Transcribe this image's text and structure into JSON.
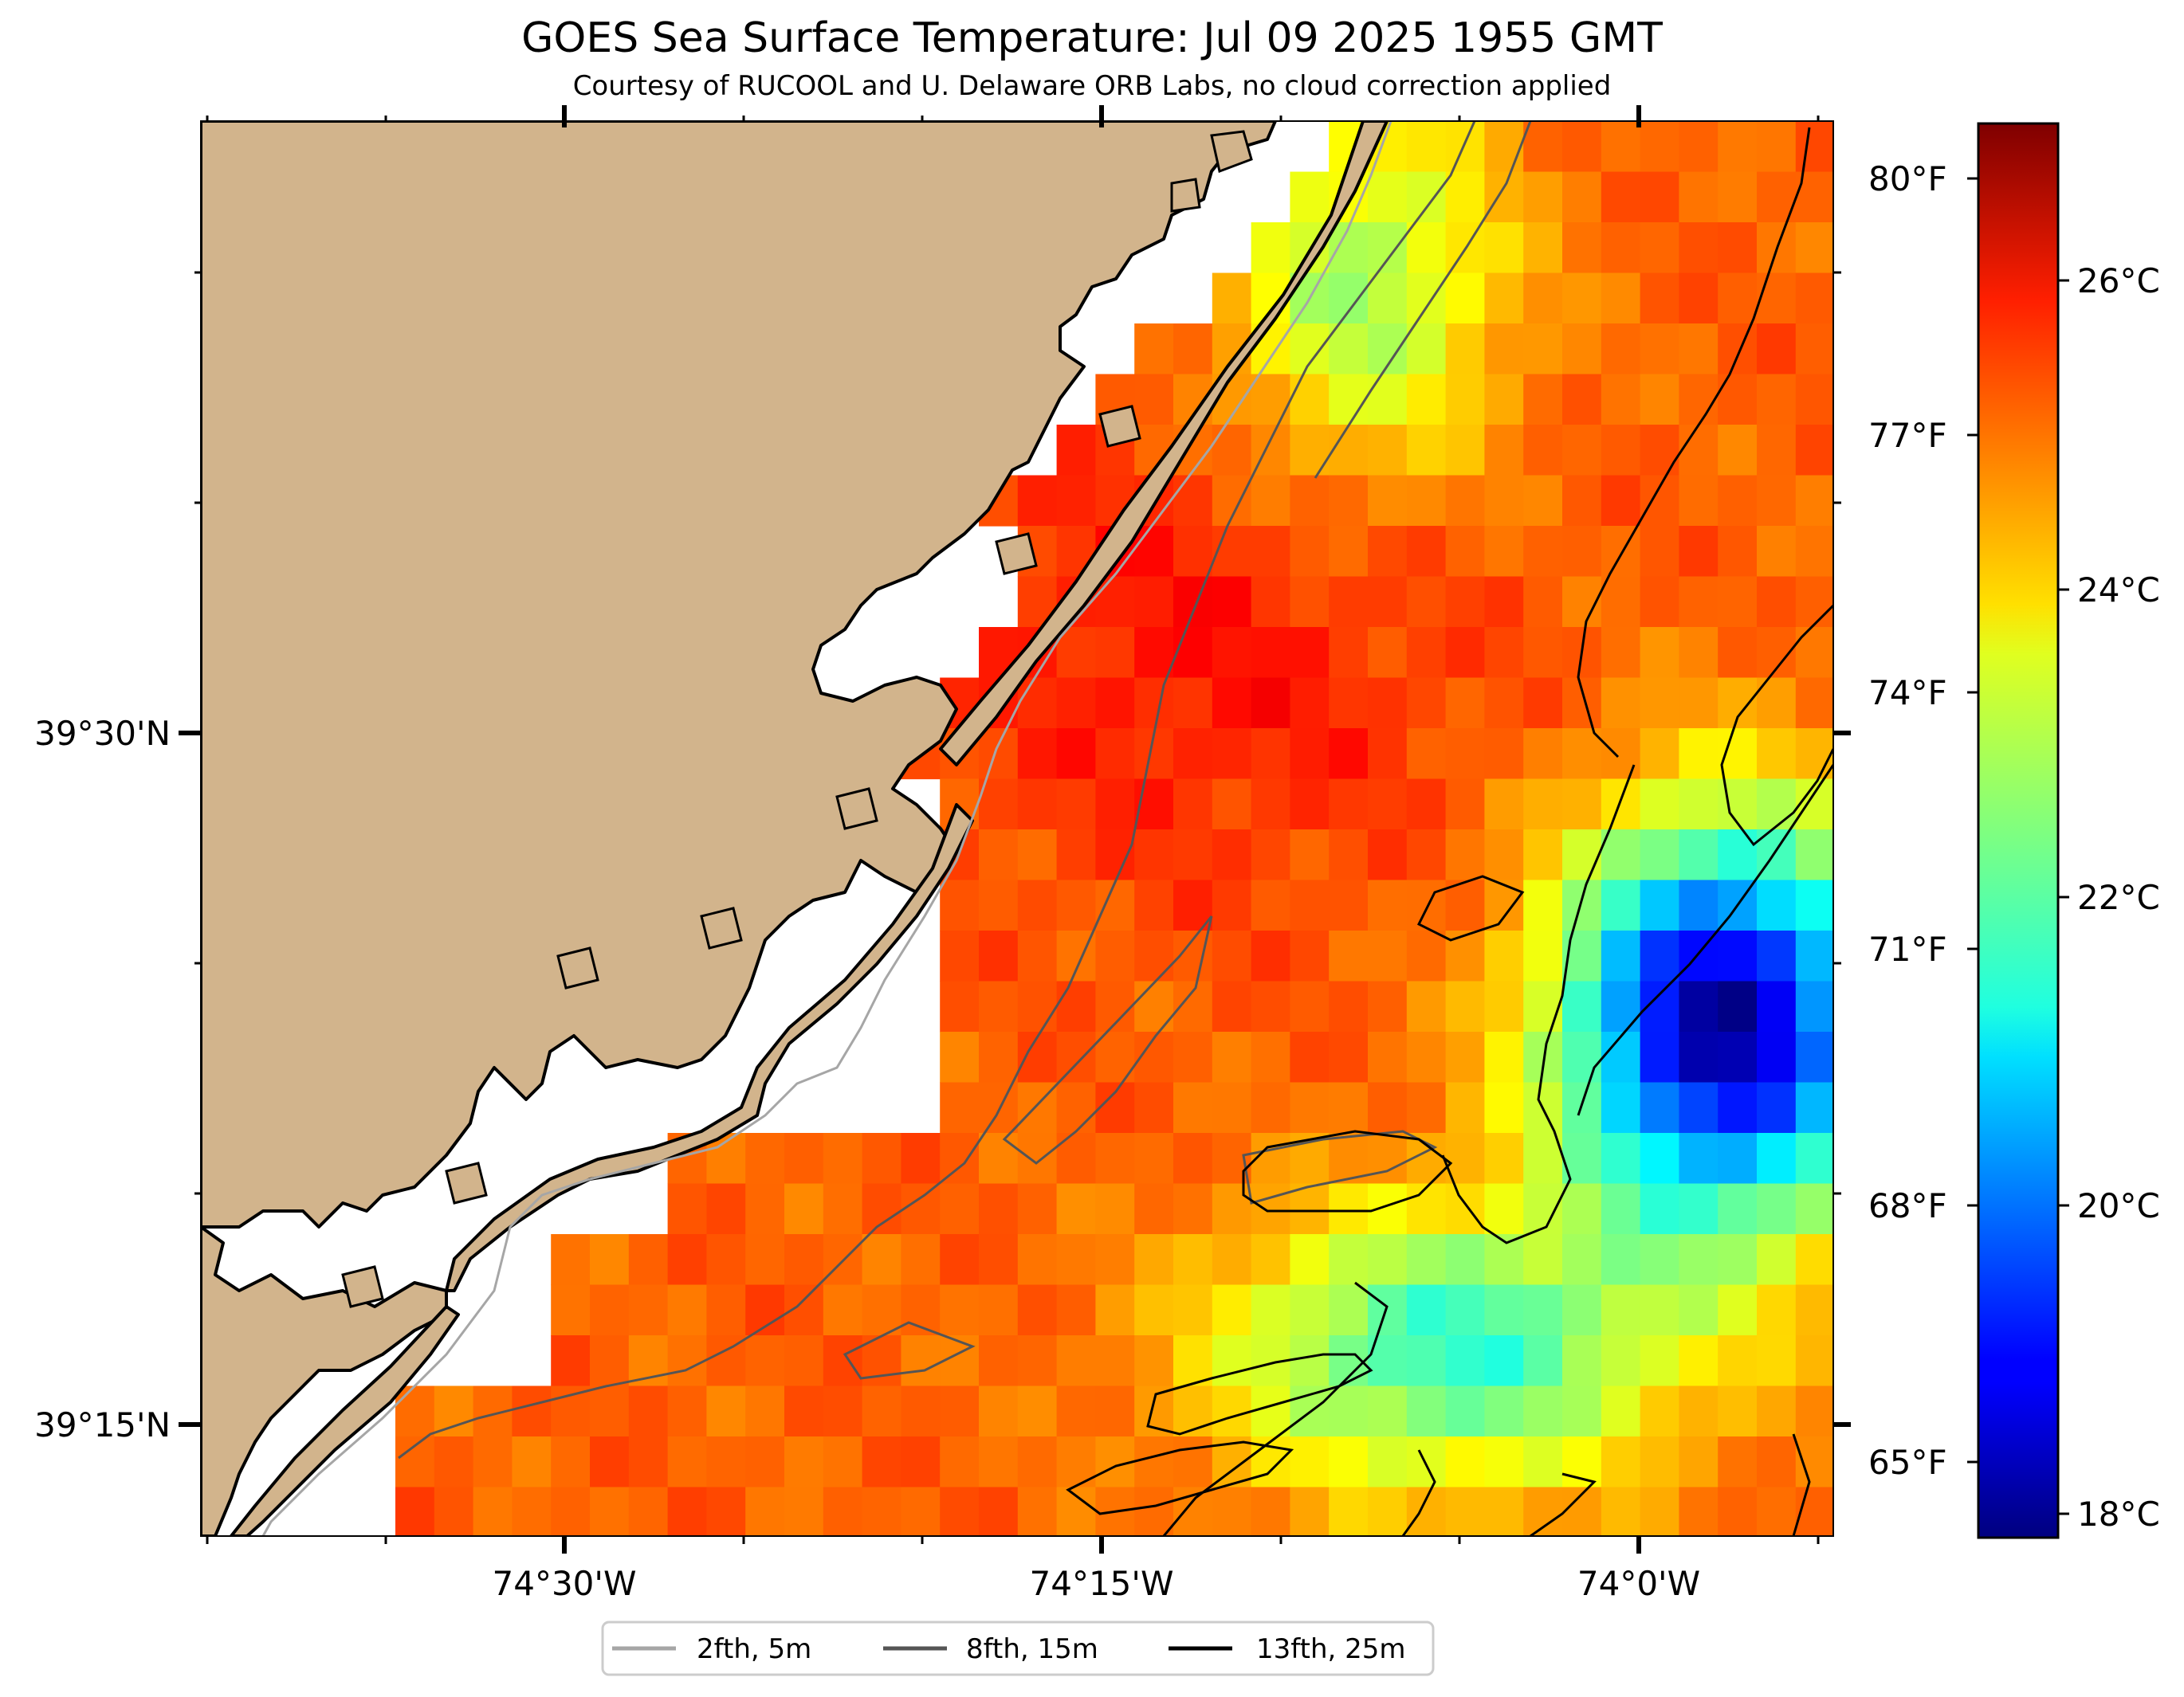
{
  "title": "GOES Sea Surface Temperature: Jul 09 2025 1955 GMT",
  "subtitle": "Courtesy of RUCOOL and U. Delaware ORB Labs, no cloud correction applied",
  "axes": {
    "x_ticks": [
      "74°30'W",
      "74°15'W",
      "74°0'W"
    ],
    "y_ticks": [
      "39°30'N",
      "39°15'N"
    ]
  },
  "colorbar": {
    "celsius_ticks": [
      "26°C",
      "24°C",
      "22°C",
      "20°C",
      "18°C"
    ],
    "fahrenheit_ticks": [
      "80°F",
      "77°F",
      "74°F",
      "71°F",
      "68°F",
      "65°F"
    ],
    "colormap": "jet",
    "range_celsius": [
      17.7,
      27.4
    ]
  },
  "legend": {
    "items": [
      {
        "label": "2fth, 5m",
        "color": "#a6a6a6"
      },
      {
        "label": "8fth, 15m",
        "color": "#555555"
      },
      {
        "label": "13fth, 25m",
        "color": "#000000"
      }
    ]
  },
  "colors": {
    "land": "#d2b48c",
    "no_data": "#ffffff"
  }
}
